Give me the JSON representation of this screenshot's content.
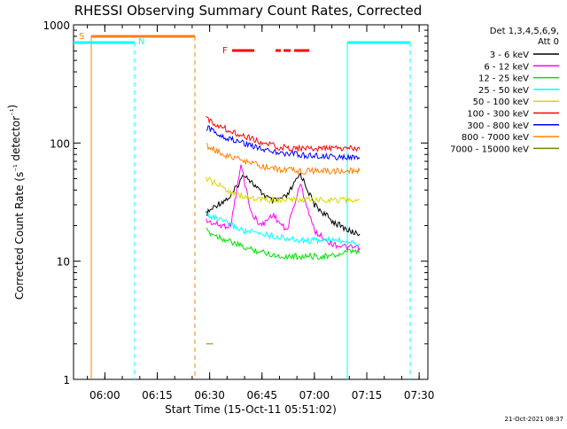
{
  "chart_data": {
    "type": "line",
    "title": "RHESSI Observing Summary Count Rates, Corrected",
    "ylabel": "Corrected Count Rate (s⁻¹ detector⁻¹)",
    "xlabel": "Start Time (15-Oct-11 05:51:02)",
    "yscale": "log",
    "ylim": [
      1,
      1000
    ],
    "xlim": [
      "05:51:02",
      "07:32:30"
    ],
    "grid": false,
    "legend_position": "right",
    "y_ticks": [
      {
        "value": 1,
        "label": "1"
      },
      {
        "value": 10,
        "label": "10"
      },
      {
        "value": 100,
        "label": "100"
      },
      {
        "value": 1000,
        "label": "1000"
      }
    ],
    "x_ticks": [
      {
        "value": "06:00",
        "label": "06:00"
      },
      {
        "value": "06:15",
        "label": "06:15"
      },
      {
        "value": "06:30",
        "label": "06:30"
      },
      {
        "value": "06:45",
        "label": "06:45"
      },
      {
        "value": "07:00",
        "label": "07:00"
      },
      {
        "value": "07:15",
        "label": "07:15"
      },
      {
        "value": "07:30",
        "label": "07:30"
      }
    ],
    "legend_header": [
      "Det 1,3,4,5,6,9,",
      "Att 0"
    ],
    "series": [
      {
        "name": "3 - 6 keV",
        "color": "#000000",
        "values": [
          [
            "06:29:00",
            25
          ],
          [
            "06:32:00",
            30
          ],
          [
            "06:36:00",
            35
          ],
          [
            "06:40:00",
            55
          ],
          [
            "06:44:00",
            40
          ],
          [
            "06:48:00",
            32
          ],
          [
            "06:52:00",
            35
          ],
          [
            "06:56:00",
            55
          ],
          [
            "07:00:00",
            30
          ],
          [
            "07:05:00",
            22
          ],
          [
            "07:10:00",
            18
          ],
          [
            "07:13:00",
            17
          ]
        ]
      },
      {
        "name": "6 - 12 keV",
        "color": "#ff00ff",
        "values": [
          [
            "06:29:00",
            22
          ],
          [
            "06:33:00",
            20
          ],
          [
            "06:36:00",
            20
          ],
          [
            "06:39:00",
            65
          ],
          [
            "06:42:00",
            25
          ],
          [
            "06:45:00",
            20
          ],
          [
            "06:48:00",
            25
          ],
          [
            "06:52:00",
            18
          ],
          [
            "06:56:00",
            45
          ],
          [
            "07:00:00",
            18
          ],
          [
            "07:05:00",
            14
          ],
          [
            "07:10:00",
            13
          ],
          [
            "07:13:00",
            13
          ]
        ]
      },
      {
        "name": "12 - 25 keV",
        "color": "#00e000",
        "values": [
          [
            "06:29:00",
            18
          ],
          [
            "06:35:00",
            15
          ],
          [
            "06:40:00",
            13
          ],
          [
            "06:45:00",
            12
          ],
          [
            "06:50:00",
            11
          ],
          [
            "06:55:00",
            11
          ],
          [
            "07:00:00",
            11
          ],
          [
            "07:05:00",
            11
          ],
          [
            "07:10:00",
            12
          ],
          [
            "07:13:00",
            12
          ]
        ]
      },
      {
        "name": "25 - 50 keV",
        "color": "#00ffff",
        "values": [
          [
            "06:29:00",
            25
          ],
          [
            "06:35:00",
            21
          ],
          [
            "06:40:00",
            18
          ],
          [
            "06:45:00",
            17
          ],
          [
            "06:50:00",
            16
          ],
          [
            "06:55:00",
            15
          ],
          [
            "07:00:00",
            15
          ],
          [
            "07:05:00",
            15
          ],
          [
            "07:10:00",
            15
          ],
          [
            "07:13:00",
            14
          ]
        ]
      },
      {
        "name": "50 - 100 keV",
        "color": "#d8d800",
        "values": [
          [
            "06:29:00",
            50
          ],
          [
            "06:35:00",
            40
          ],
          [
            "06:40:00",
            35
          ],
          [
            "06:45:00",
            33
          ],
          [
            "06:50:00",
            33
          ],
          [
            "06:55:00",
            33
          ],
          [
            "07:00:00",
            33
          ],
          [
            "07:05:00",
            33
          ],
          [
            "07:10:00",
            33
          ],
          [
            "07:13:00",
            33
          ]
        ]
      },
      {
        "name": "100 - 300 keV",
        "color": "#ff0000",
        "values": [
          [
            "06:29:00",
            160
          ],
          [
            "06:35:00",
            130
          ],
          [
            "06:40:00",
            115
          ],
          [
            "06:45:00",
            100
          ],
          [
            "06:50:00",
            92
          ],
          [
            "06:55:00",
            90
          ],
          [
            "07:00:00",
            90
          ],
          [
            "07:05:00",
            90
          ],
          [
            "07:10:00",
            90
          ],
          [
            "07:13:00",
            88
          ]
        ]
      },
      {
        "name": "300 - 800 keV",
        "color": "#0000ff",
        "values": [
          [
            "06:29:00",
            135
          ],
          [
            "06:35:00",
            110
          ],
          [
            "06:40:00",
            100
          ],
          [
            "06:45:00",
            90
          ],
          [
            "06:50:00",
            82
          ],
          [
            "06:55:00",
            80
          ],
          [
            "07:00:00",
            78
          ],
          [
            "07:05:00",
            76
          ],
          [
            "07:10:00",
            75
          ],
          [
            "07:13:00",
            74
          ]
        ]
      },
      {
        "name": "800 - 7000 keV",
        "color": "#ff8000",
        "values": [
          [
            "06:29:00",
            95
          ],
          [
            "06:35:00",
            78
          ],
          [
            "06:40:00",
            70
          ],
          [
            "06:45:00",
            63
          ],
          [
            "06:50:00",
            60
          ],
          [
            "06:55:00",
            58
          ],
          [
            "07:00:00",
            58
          ],
          [
            "07:05:00",
            58
          ],
          [
            "07:10:00",
            58
          ],
          [
            "07:13:00",
            58
          ]
        ]
      },
      {
        "name": "7000 - 15000 keV",
        "color": "#808000",
        "values": [
          [
            "06:29:00",
            2
          ],
          [
            "06:30:00",
            2
          ],
          [
            "06:31:00",
            2
          ]
        ]
      }
    ],
    "annotations": [
      {
        "label": "S",
        "color": "#ff8000"
      },
      {
        "label": "N",
        "color": "#00ffff"
      },
      {
        "label": "F",
        "color": "#ff0000"
      }
    ],
    "footer_date": "21-Oct-2021 08:37"
  }
}
